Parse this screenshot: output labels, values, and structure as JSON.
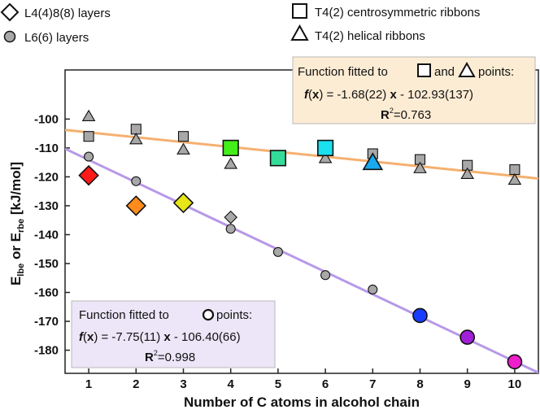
{
  "chart_data": {
    "type": "scatter",
    "xlabel": "Number of C atoms in alcohol chain",
    "ylabel": {
      "main": "E",
      "sub1": "lbe",
      "mid": " or E",
      "sub2": "rbe",
      "unit": " [kJ/mol]"
    },
    "xlim": [
      0.5,
      10.5
    ],
    "ylim": [
      -188,
      -83
    ],
    "xticks": [
      1,
      2,
      3,
      4,
      5,
      6,
      7,
      8,
      9,
      10
    ],
    "yticks": [
      -100,
      -110,
      -120,
      -130,
      -140,
      -150,
      -160,
      -170,
      -180
    ],
    "legend": [
      {
        "marker": "diamond",
        "label": "L4(4)8(8) layers"
      },
      {
        "marker": "square",
        "label": "T4(2) centrosymmetric ribbons"
      },
      {
        "marker": "circle",
        "label": "L6(6) layers"
      },
      {
        "marker": "triangle",
        "label": "T4(2) helical ribbons"
      }
    ],
    "series": [
      {
        "name": "L4(4)8(8) layers",
        "marker": "diamond",
        "points": [
          {
            "x": 1,
            "y": -119.5,
            "color": "#ff1a1a",
            "big": true
          },
          {
            "x": 2,
            "y": -130,
            "color": "#ff8c1a",
            "big": true
          },
          {
            "x": 3,
            "y": -129,
            "color": "#e6e619",
            "big": true
          },
          {
            "x": 4,
            "y": -134,
            "color": "#a8a8a8",
            "big": false
          }
        ]
      },
      {
        "name": "L6(6) layers",
        "marker": "circle",
        "points": [
          {
            "x": 1,
            "y": -113,
            "color": "#a8a8a8",
            "big": false
          },
          {
            "x": 2,
            "y": -121.5,
            "color": "#a8a8a8",
            "big": false
          },
          {
            "x": 3,
            "y": -130,
            "color": "#a8a8a8",
            "big": false
          },
          {
            "x": 4,
            "y": -138,
            "color": "#a8a8a8",
            "big": false
          },
          {
            "x": 5,
            "y": -146,
            "color": "#a8a8a8",
            "big": false
          },
          {
            "x": 6,
            "y": -154,
            "color": "#a8a8a8",
            "big": false
          },
          {
            "x": 7,
            "y": -159,
            "color": "#a8a8a8",
            "big": false
          },
          {
            "x": 8,
            "y": -168,
            "color": "#1a3cff",
            "big": true
          },
          {
            "x": 9,
            "y": -175.5,
            "color": "#a020d8",
            "big": true
          },
          {
            "x": 10,
            "y": -184,
            "color": "#ee1ecc",
            "big": true
          }
        ]
      },
      {
        "name": "T4(2) centrosymmetric ribbons",
        "marker": "square",
        "points": [
          {
            "x": 1,
            "y": -106,
            "color": "#a8a8a8",
            "big": false
          },
          {
            "x": 2,
            "y": -103.5,
            "color": "#a8a8a8",
            "big": false
          },
          {
            "x": 3,
            "y": -106,
            "color": "#a8a8a8",
            "big": false
          },
          {
            "x": 4,
            "y": -110,
            "color": "#44ee1a",
            "big": true
          },
          {
            "x": 5,
            "y": -113.5,
            "color": "#33dd99",
            "big": true
          },
          {
            "x": 6,
            "y": -110,
            "color": "#1ae0f0",
            "big": true
          },
          {
            "x": 7,
            "y": -112,
            "color": "#a8a8a8",
            "big": false
          },
          {
            "x": 8,
            "y": -114,
            "color": "#a8a8a8",
            "big": false
          },
          {
            "x": 9,
            "y": -116,
            "color": "#a8a8a8",
            "big": false
          },
          {
            "x": 10,
            "y": -117.5,
            "color": "#a8a8a8",
            "big": false
          }
        ]
      },
      {
        "name": "T4(2) helical ribbons",
        "marker": "triangle",
        "points": [
          {
            "x": 1,
            "y": -99,
            "color": "#a8a8a8",
            "big": false
          },
          {
            "x": 2,
            "y": -107,
            "color": "#a8a8a8",
            "big": false
          },
          {
            "x": 3,
            "y": -110.5,
            "color": "#a8a8a8",
            "big": false
          },
          {
            "x": 4,
            "y": -115.5,
            "color": "#a8a8a8",
            "big": false
          },
          {
            "x": 5,
            "y": -114,
            "color": "#33dd99",
            "big": false
          },
          {
            "x": 6,
            "y": -113.5,
            "color": "#a8a8a8",
            "big": false
          },
          {
            "x": 7,
            "y": -115,
            "color": "#1aa8ee",
            "big": true
          },
          {
            "x": 8,
            "y": -117,
            "color": "#a8a8a8",
            "big": false
          },
          {
            "x": 9,
            "y": -119,
            "color": "#a8a8a8",
            "big": false
          },
          {
            "x": 10,
            "y": -121,
            "color": "#a8a8a8",
            "big": false
          }
        ]
      }
    ],
    "fits": [
      {
        "name": "ribbons-fit",
        "slope": -1.68,
        "intercept": -102.93,
        "color": "#f5b070",
        "box": {
          "title_prefix": "Function fitted to ",
          "title_mid": " and ",
          "title_suffix": " points:",
          "fx": "f",
          "x": "x",
          "eq_mid": ") = -1.68(22) ",
          "eq_x": "x",
          "eq_tail": " - 102.93(137)",
          "r2_label": "R",
          "r2_sup": "2",
          "r2_value": "=0.763",
          "fill": "#fdecd4",
          "stroke": "#b8b8b8"
        }
      },
      {
        "name": "layers-fit",
        "slope": -7.75,
        "intercept": -106.4,
        "color": "#b898e8",
        "box": {
          "title_prefix": "Function fitted to ",
          "title_suffix": " points:",
          "fx": "f",
          "x": "x",
          "eq_mid": ") = -7.75(11) ",
          "eq_x": "x",
          "eq_tail": " - 106.40(66)",
          "r2_label": "R",
          "r2_sup": "2",
          "r2_value": "=0.998",
          "fill": "#ece6f8",
          "stroke": "#b8b8b8"
        }
      }
    ]
  }
}
